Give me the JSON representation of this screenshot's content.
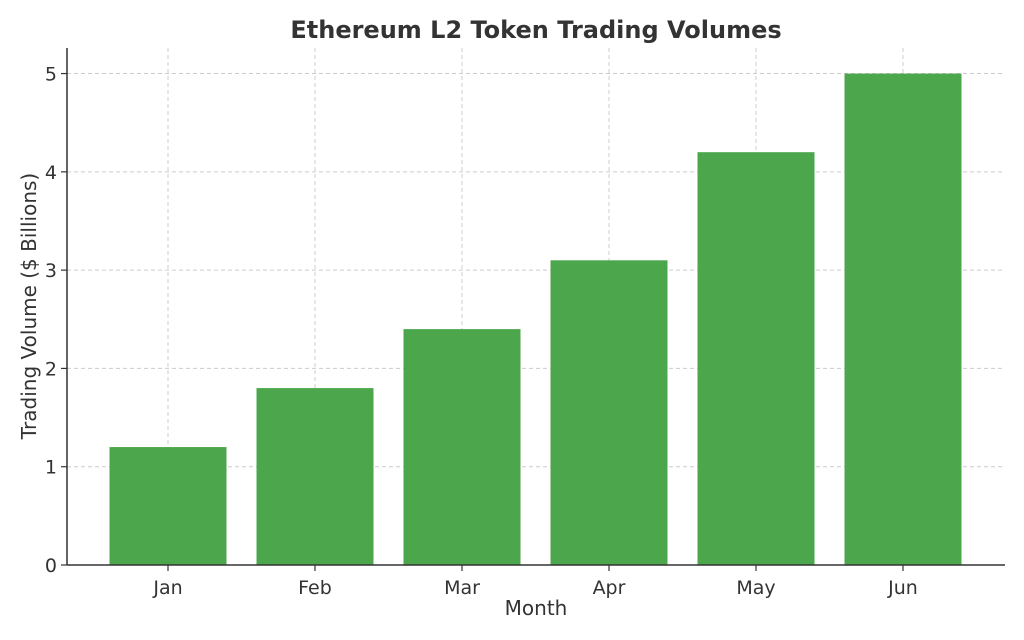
{
  "chart_data": {
    "type": "bar",
    "title": "Ethereum L2 Token Trading Volumes",
    "xlabel": "Month",
    "ylabel": "Trading Volume ($ Billions)",
    "categories": [
      "Jan",
      "Feb",
      "Mar",
      "Apr",
      "May",
      "Jun"
    ],
    "values": [
      1.2,
      1.8,
      2.4,
      3.1,
      4.2,
      5.0
    ],
    "ylim": [
      0,
      5.26
    ],
    "yticks": [
      "0",
      "1",
      "2",
      "3",
      "4",
      "5"
    ],
    "grid": true,
    "bar_color": "#4ca64c"
  }
}
